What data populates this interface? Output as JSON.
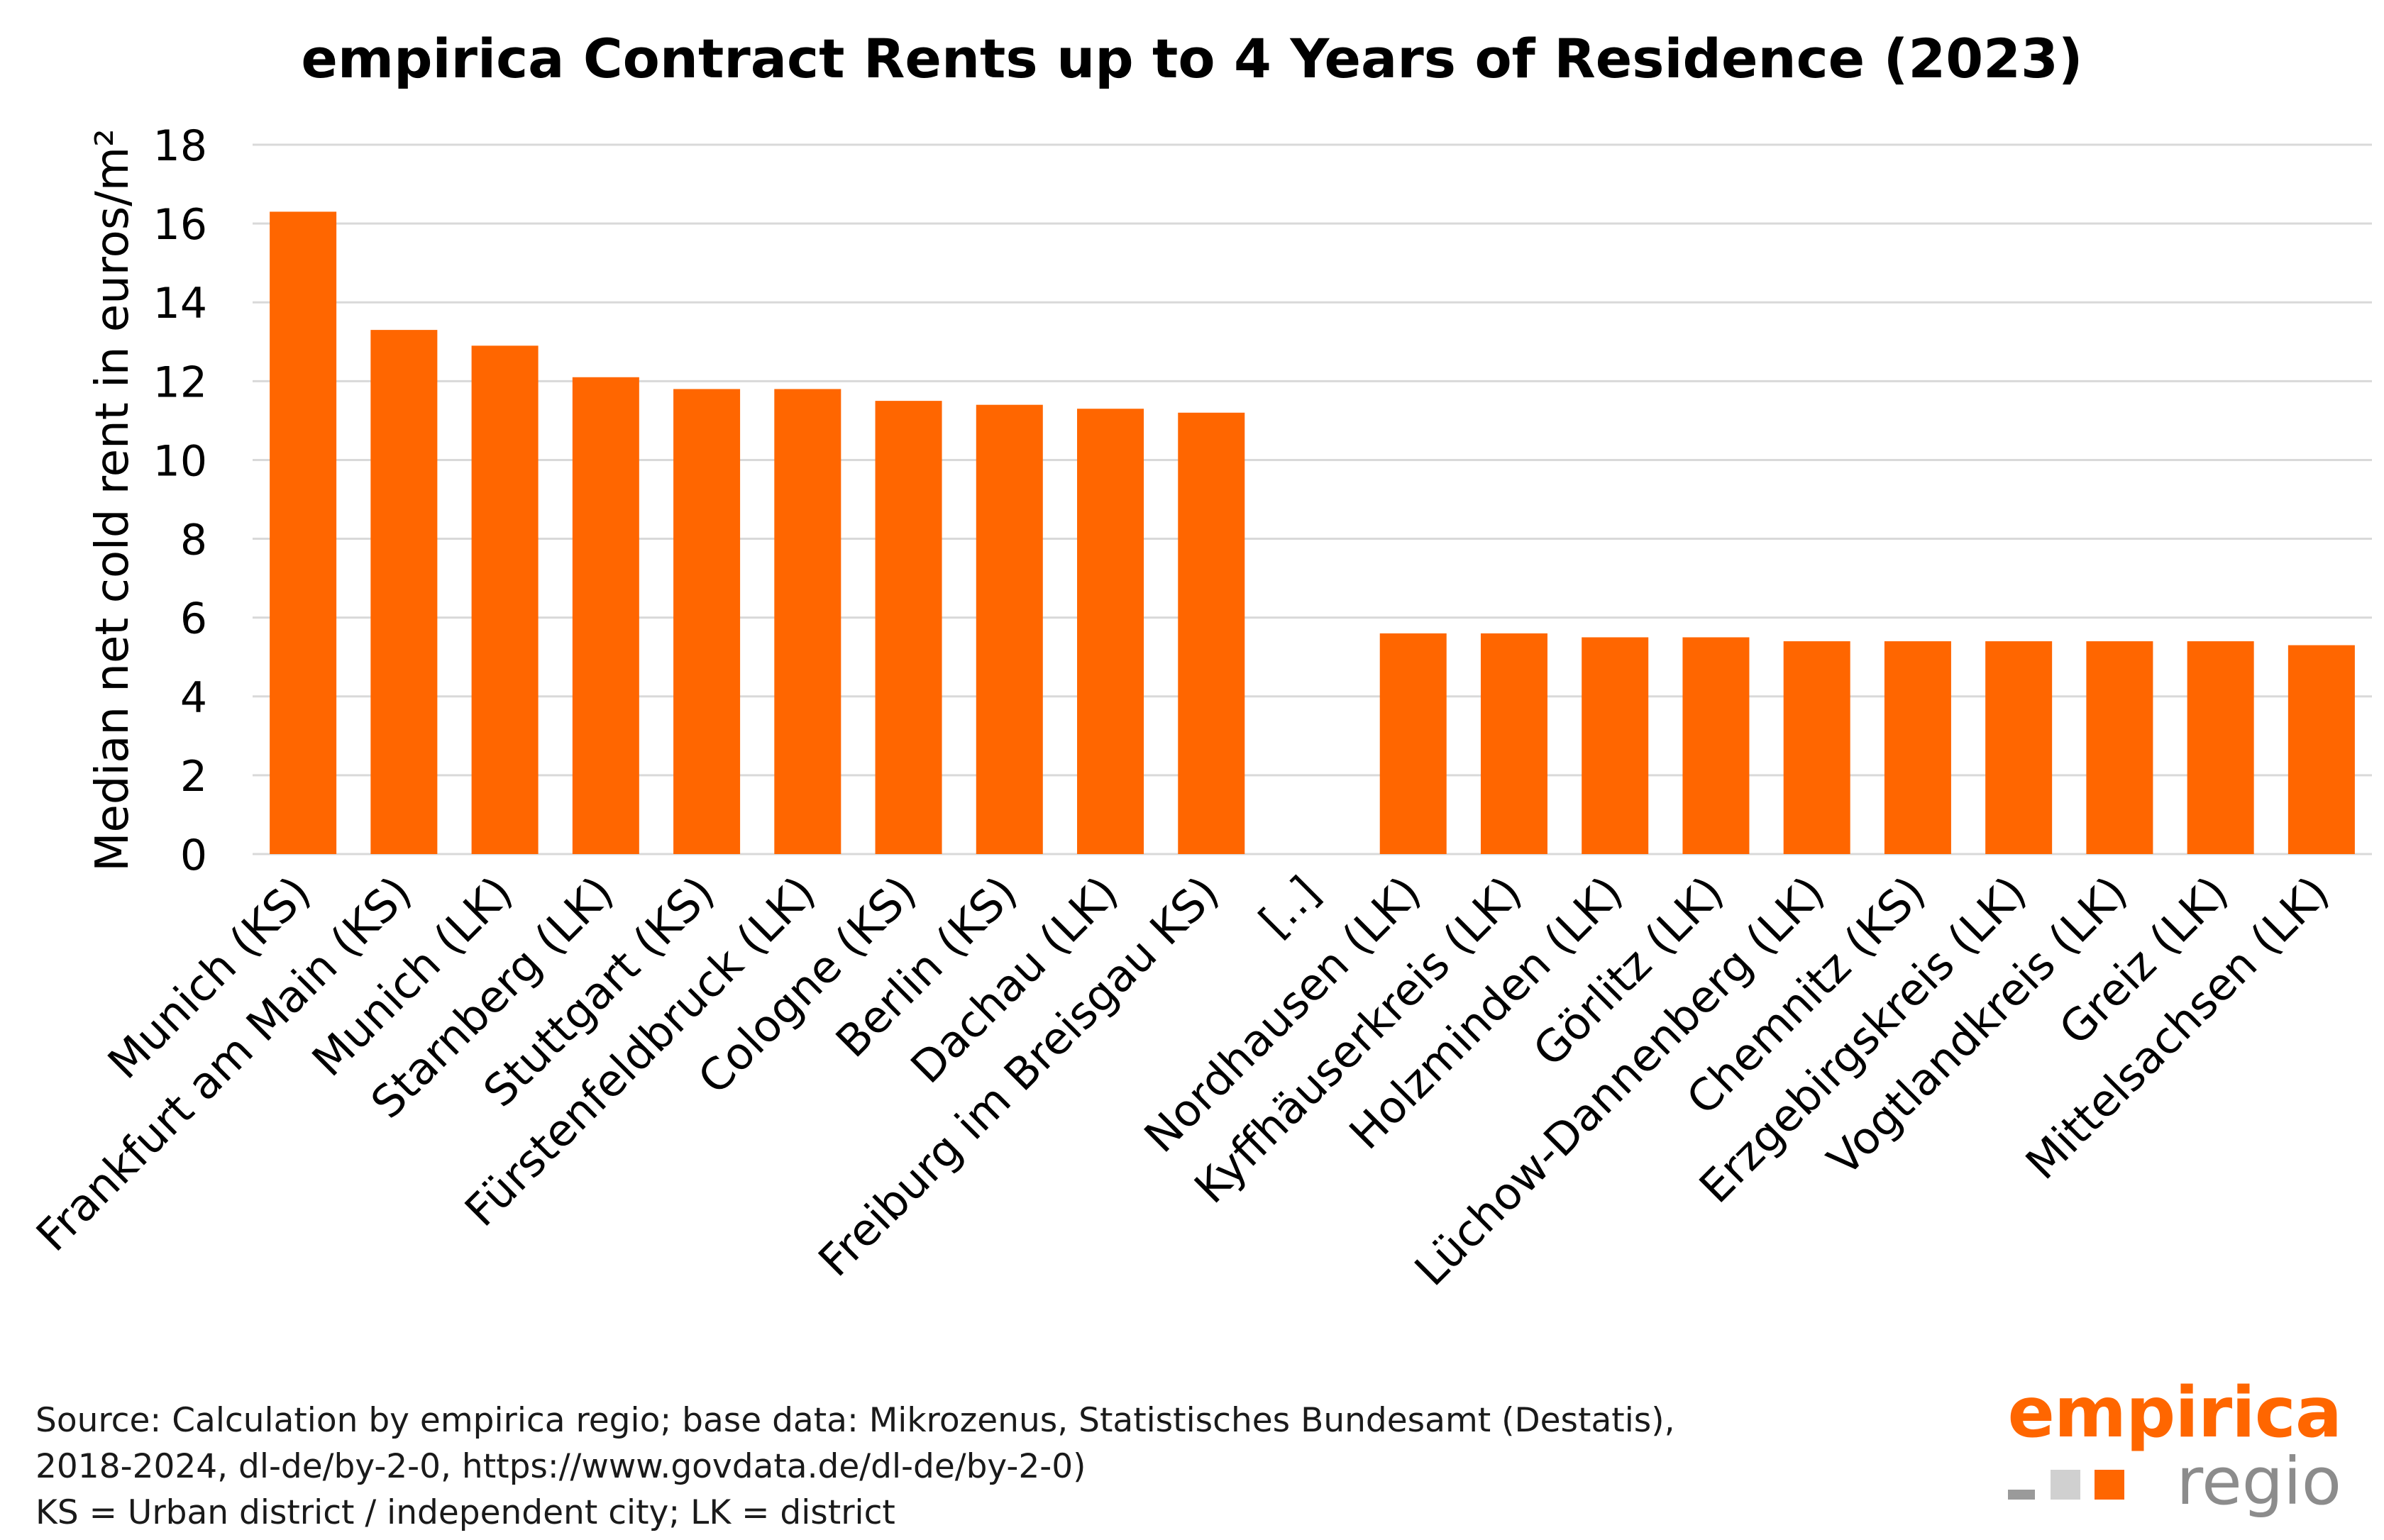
{
  "chart_data": {
    "type": "bar",
    "title": "empirica Contract Rents up to 4 Years of Residence  (2023)",
    "xlabel": "",
    "ylabel": "Median net cold rent in euros/m²",
    "ylim": [
      0,
      18
    ],
    "yticks": [
      0,
      2,
      4,
      6,
      8,
      10,
      12,
      14,
      16,
      18
    ],
    "grid": true,
    "bar_color": "#ff6600",
    "categories": [
      "Munich (KS)",
      "Frankfurt am Main (KS)",
      "Munich (LK)",
      "Starnberg (LK)",
      "Stuttgart (KS)",
      "Fürstenfeldbruck (LK)",
      "Cologne (KS)",
      "Berlin (KS)",
      "Dachau (LK)",
      "Freiburg im Breisgau KS)",
      "[..]",
      "Nordhausen (LK)",
      "Kyffhäuserkreis (LK)",
      "Holzminden (LK)",
      "Görlitz (LK)",
      "Lüchow-Dannenberg (LK)",
      "Chemnitz  (KS)",
      "Erzgebirgskreis (LK)",
      "Vogtlandkreis (LK)",
      "Greiz (LK)",
      "Mittelsachsen (LK)"
    ],
    "values": [
      16.3,
      13.3,
      12.9,
      12.1,
      11.8,
      11.8,
      11.5,
      11.4,
      11.3,
      11.2,
      null,
      5.6,
      5.6,
      5.5,
      5.5,
      5.4,
      5.4,
      5.4,
      5.4,
      5.4,
      5.3
    ]
  },
  "footer": {
    "source_line1": "Source: Calculation by empirica regio; base data: Mikrozenus, Statistisches Bundesamt (Destatis),",
    "source_line2": "2018-2024, dl-de/by-2-0, https://www.govdata.de/dl-de/by-2-0)",
    "legend_line": "KS = Urban district / independent city; LK = district"
  },
  "logo": {
    "brand": "empirica",
    "sub": "regio"
  }
}
